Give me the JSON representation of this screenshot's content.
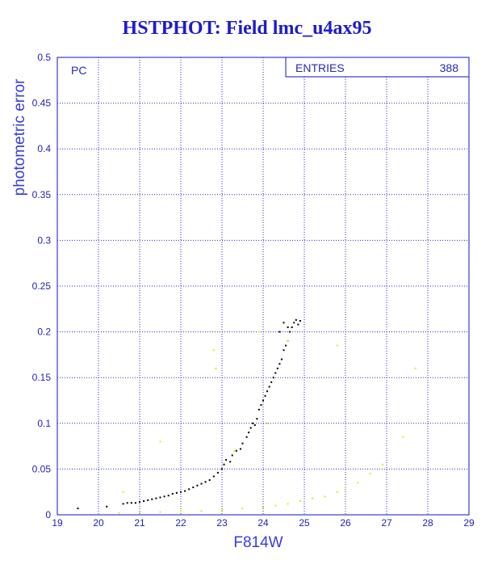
{
  "chart_data": {
    "type": "scatter",
    "title": "HSTPHOT: Field lmc_u4ax95",
    "xlabel": "F814W",
    "ylabel": "photometric error",
    "xlim": [
      19,
      29
    ],
    "ylim": [
      0,
      0.5
    ],
    "x_ticks": [
      19,
      20,
      21,
      22,
      23,
      24,
      25,
      26,
      27,
      28,
      29
    ],
    "y_ticks": [
      0,
      0.05,
      0.1,
      0.15,
      0.2,
      0.25,
      0.3,
      0.35,
      0.4,
      0.45,
      0.5
    ],
    "grid": true,
    "panel_label": "PC",
    "stats_box": {
      "label": "ENTRIES",
      "value": "388"
    },
    "colors": {
      "frame": "#1111cc",
      "grid": "#2a2acc",
      "black_series": "#000000",
      "yellow_series": "#e8e800"
    },
    "series": [
      {
        "color": "#000000",
        "points": [
          [
            19.5,
            0.007
          ],
          [
            20.2,
            0.009
          ],
          [
            20.6,
            0.012
          ],
          [
            20.7,
            0.013
          ],
          [
            20.8,
            0.013
          ],
          [
            20.9,
            0.013
          ],
          [
            21.0,
            0.014
          ],
          [
            21.1,
            0.015
          ],
          [
            21.2,
            0.016
          ],
          [
            21.3,
            0.017
          ],
          [
            21.4,
            0.018
          ],
          [
            21.5,
            0.019
          ],
          [
            21.6,
            0.02
          ],
          [
            21.7,
            0.021
          ],
          [
            21.8,
            0.023
          ],
          [
            21.9,
            0.024
          ],
          [
            22.0,
            0.025
          ],
          [
            22.1,
            0.026
          ],
          [
            22.2,
            0.028
          ],
          [
            22.3,
            0.03
          ],
          [
            22.4,
            0.032
          ],
          [
            22.5,
            0.034
          ],
          [
            22.6,
            0.036
          ],
          [
            22.7,
            0.038
          ],
          [
            22.8,
            0.042
          ],
          [
            22.9,
            0.046
          ],
          [
            23.0,
            0.05
          ],
          [
            23.05,
            0.055
          ],
          [
            23.1,
            0.06
          ],
          [
            23.2,
            0.058
          ],
          [
            23.25,
            0.065
          ],
          [
            23.35,
            0.07
          ],
          [
            23.45,
            0.072
          ],
          [
            23.5,
            0.078
          ],
          [
            23.6,
            0.085
          ],
          [
            23.65,
            0.09
          ],
          [
            23.7,
            0.095
          ],
          [
            23.75,
            0.1
          ],
          [
            23.8,
            0.098
          ],
          [
            23.85,
            0.105
          ],
          [
            23.9,
            0.115
          ],
          [
            23.95,
            0.12
          ],
          [
            24.0,
            0.125
          ],
          [
            24.05,
            0.13
          ],
          [
            24.1,
            0.135
          ],
          [
            24.15,
            0.14
          ],
          [
            24.2,
            0.145
          ],
          [
            24.25,
            0.15
          ],
          [
            24.3,
            0.155
          ],
          [
            24.35,
            0.16
          ],
          [
            24.4,
            0.165
          ],
          [
            24.45,
            0.17
          ],
          [
            24.5,
            0.18
          ],
          [
            24.55,
            0.185
          ],
          [
            24.6,
            0.19
          ],
          [
            24.65,
            0.2
          ],
          [
            24.7,
            0.205
          ],
          [
            24.75,
            0.21
          ],
          [
            24.8,
            0.213
          ],
          [
            24.85,
            0.208
          ],
          [
            24.9,
            0.212
          ],
          [
            24.5,
            0.21
          ],
          [
            24.6,
            0.205
          ],
          [
            24.4,
            0.2
          ]
        ]
      },
      {
        "color": "#e8e800",
        "points": [
          [
            20.5,
            0.002
          ],
          [
            21.0,
            0.003
          ],
          [
            21.5,
            0.003
          ],
          [
            22.0,
            0.004
          ],
          [
            22.5,
            0.004
          ],
          [
            23.0,
            0.005
          ],
          [
            23.5,
            0.007
          ],
          [
            24.0,
            0.008
          ],
          [
            24.3,
            0.01
          ],
          [
            24.6,
            0.012
          ],
          [
            24.9,
            0.015
          ],
          [
            25.2,
            0.018
          ],
          [
            25.5,
            0.02
          ],
          [
            25.8,
            0.025
          ],
          [
            26.0,
            0.03
          ],
          [
            26.3,
            0.035
          ],
          [
            26.6,
            0.045
          ],
          [
            26.9,
            0.055
          ],
          [
            22.8,
            0.18
          ],
          [
            22.85,
            0.16
          ],
          [
            23.9,
            0.2
          ],
          [
            24.6,
            0.19
          ],
          [
            25.8,
            0.185
          ],
          [
            27.7,
            0.16
          ],
          [
            27.4,
            0.085
          ],
          [
            21.5,
            0.08
          ],
          [
            20.6,
            0.025
          ],
          [
            23.3,
            0.07
          ],
          [
            24.1,
            0.1
          ]
        ]
      }
    ]
  }
}
